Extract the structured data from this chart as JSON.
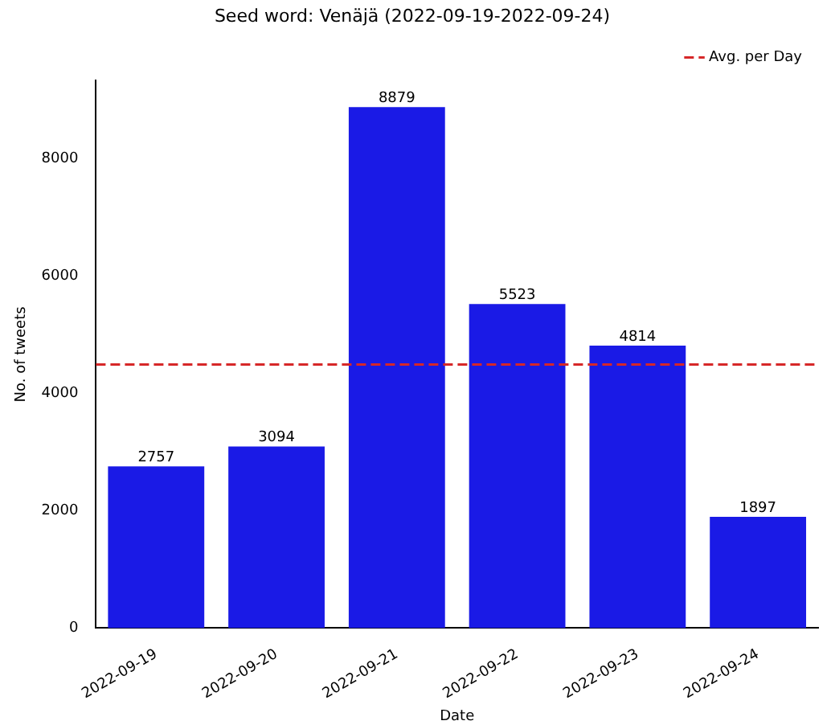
{
  "chart_data": {
    "type": "bar",
    "title": "Seed word: Venäjä (2022-09-19-2022-09-24)",
    "xlabel": "Date",
    "ylabel": "No. of tweets",
    "categories": [
      "2022-09-19",
      "2022-09-20",
      "2022-09-21",
      "2022-09-22",
      "2022-09-23",
      "2022-09-24"
    ],
    "values": [
      2757,
      3094,
      8879,
      5523,
      4814,
      1897
    ],
    "color": "#1a1ae6",
    "ylim": [
      0,
      9330
    ],
    "yticks": [
      0,
      2000,
      4000,
      6000,
      8000
    ],
    "grid": false,
    "data_labels": true,
    "ref_lines": [
      {
        "axis": "y",
        "value": 4494,
        "label": "Avg. per Day",
        "color": "#d62728",
        "line_style": "dashed"
      }
    ],
    "legend": "top right"
  }
}
